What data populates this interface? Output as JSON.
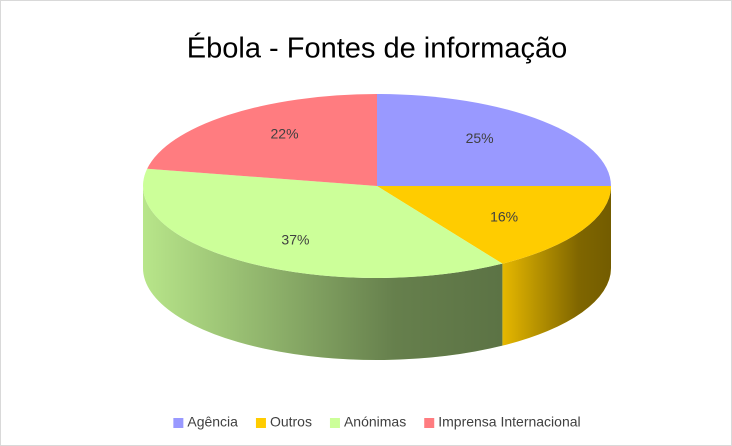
{
  "chart_data": {
    "type": "pie3d",
    "title": "Ébola - Fontes de informação",
    "categories": [
      "Agência",
      "Outros",
      "Anónimas",
      "Imprensa Internacional"
    ],
    "values": [
      25,
      16,
      37,
      22
    ],
    "value_labels": [
      "25%",
      "16%",
      "37%",
      "22%"
    ],
    "colors": [
      "#9999ff",
      "#ffcc00",
      "#ccff99",
      "#ff7c80"
    ],
    "legend": "bottom"
  }
}
